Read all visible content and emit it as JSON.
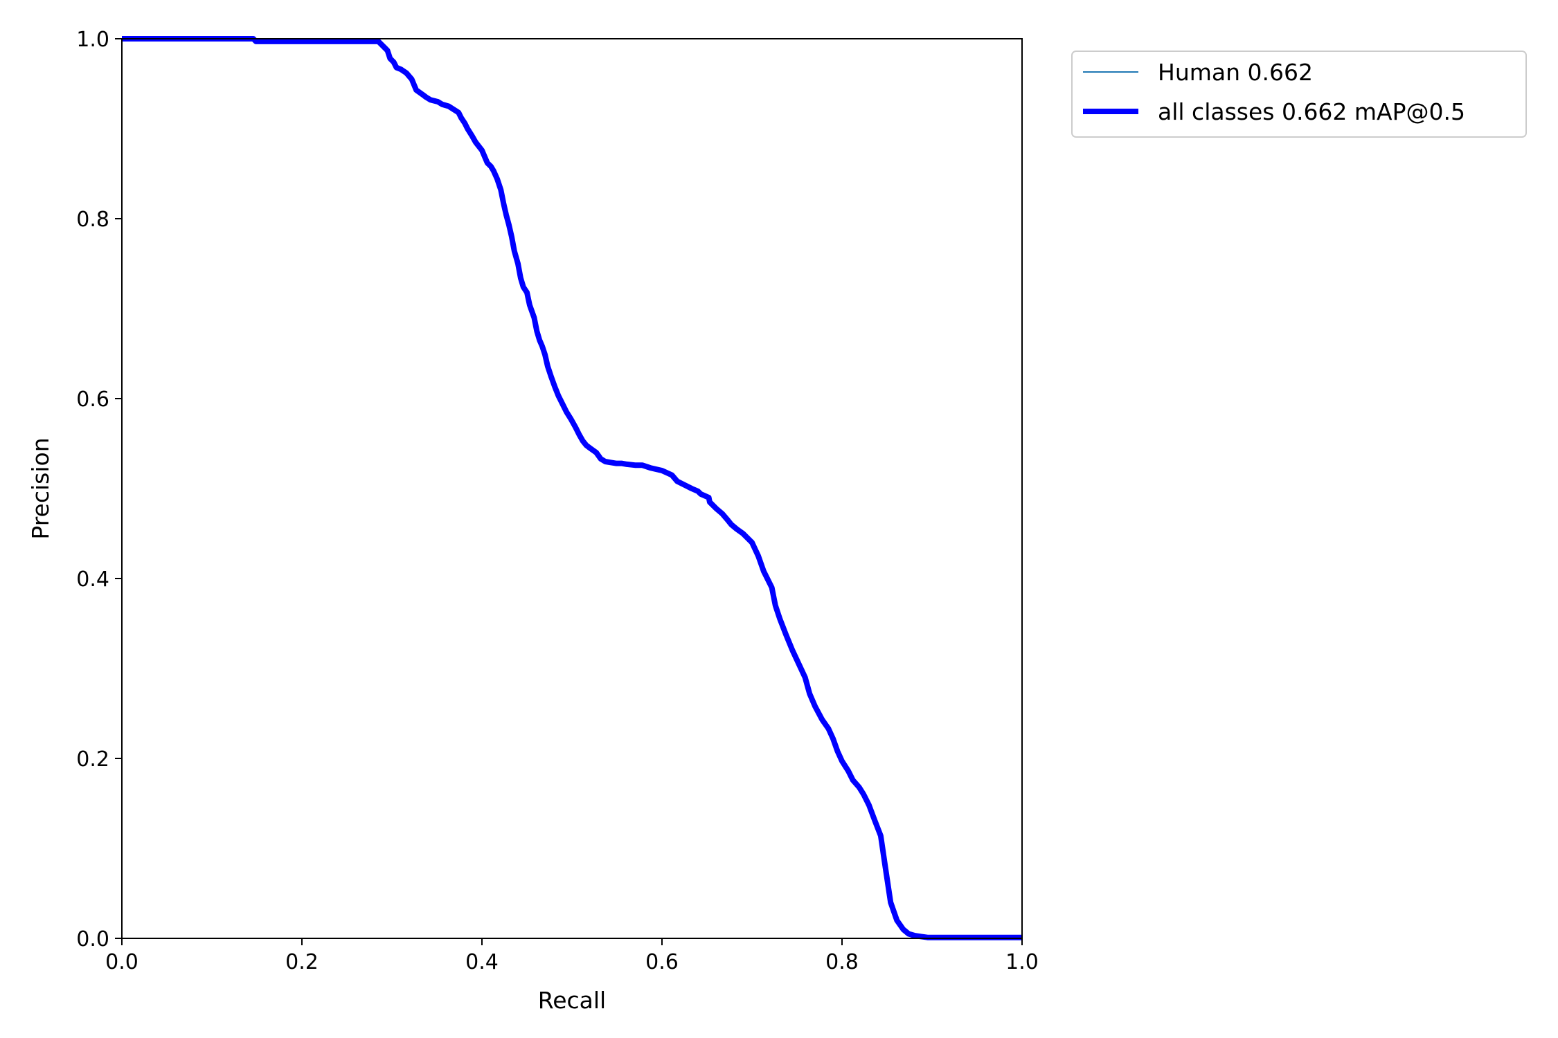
{
  "chart_data": {
    "type": "line",
    "xlabel": "Recall",
    "ylabel": "Precision",
    "xlim": [
      0.0,
      1.0
    ],
    "ylim": [
      0.0,
      1.0
    ],
    "xticks": [
      "0.0",
      "0.2",
      "0.4",
      "0.6",
      "0.8",
      "1.0"
    ],
    "yticks": [
      "0.0",
      "0.2",
      "0.4",
      "0.6",
      "0.8",
      "1.0"
    ],
    "grid": false,
    "legend_position": "outside upper right",
    "series": [
      {
        "name": "Human 0.662",
        "color": "#1f77b4",
        "linewidth": "thin",
        "x": [],
        "y": []
      },
      {
        "name": "all classes 0.662 mAP@0.5",
        "color": "#0000ff",
        "linewidth": "thick",
        "x": [
          0.0,
          0.146,
          0.149,
          0.285,
          0.288,
          0.292,
          0.295,
          0.298,
          0.302,
          0.305,
          0.31,
          0.316,
          0.322,
          0.327,
          0.334,
          0.338,
          0.343,
          0.351,
          0.356,
          0.363,
          0.374,
          0.377,
          0.381,
          0.384,
          0.389,
          0.393,
          0.4,
          0.406,
          0.41,
          0.413,
          0.417,
          0.421,
          0.424,
          0.427,
          0.43,
          0.433,
          0.436,
          0.44,
          0.443,
          0.446,
          0.45,
          0.453,
          0.458,
          0.461,
          0.464,
          0.467,
          0.47,
          0.473,
          0.477,
          0.481,
          0.485,
          0.49,
          0.494,
          0.499,
          0.504,
          0.508,
          0.512,
          0.516,
          0.52,
          0.527,
          0.532,
          0.537,
          0.543,
          0.549,
          0.555,
          0.561,
          0.57,
          0.578,
          0.587,
          0.6,
          0.611,
          0.617,
          0.627,
          0.633,
          0.64,
          0.643,
          0.652,
          0.653,
          0.66,
          0.667,
          0.673,
          0.677,
          0.683,
          0.69,
          0.7,
          0.707,
          0.713,
          0.722,
          0.726,
          0.731,
          0.738,
          0.745,
          0.752,
          0.759,
          0.764,
          0.77,
          0.778,
          0.785,
          0.79,
          0.795,
          0.8,
          0.807,
          0.812,
          0.819,
          0.824,
          0.83,
          0.836,
          0.843,
          0.848,
          0.854,
          0.861,
          0.868,
          0.874,
          0.881,
          0.888,
          0.895,
          0.901,
          0.907,
          0.913,
          0.919,
          0.924,
          0.929,
          0.932,
          0.934,
          0.938,
          0.941,
          0.944,
          0.946,
          0.948,
          1.0
        ],
        "y": [
          1.0,
          1.0,
          0.997,
          0.997,
          0.994,
          0.99,
          0.987,
          0.978,
          0.974,
          0.968,
          0.966,
          0.962,
          0.955,
          0.943,
          0.938,
          0.935,
          0.932,
          0.93,
          0.927,
          0.925,
          0.918,
          0.912,
          0.906,
          0.9,
          0.892,
          0.885,
          0.876,
          0.862,
          0.858,
          0.853,
          0.844,
          0.832,
          0.817,
          0.804,
          0.793,
          0.78,
          0.764,
          0.75,
          0.734,
          0.724,
          0.718,
          0.704,
          0.69,
          0.675,
          0.665,
          0.658,
          0.649,
          0.636,
          0.624,
          0.613,
          0.603,
          0.593,
          0.585,
          0.577,
          0.568,
          0.56,
          0.553,
          0.548,
          0.545,
          0.54,
          0.533,
          0.53,
          0.529,
          0.528,
          0.528,
          0.527,
          0.526,
          0.526,
          0.523,
          0.52,
          0.515,
          0.508,
          0.503,
          0.5,
          0.497,
          0.494,
          0.49,
          0.485,
          0.478,
          0.472,
          0.465,
          0.46,
          0.455,
          0.45,
          0.44,
          0.425,
          0.408,
          0.39,
          0.37,
          0.355,
          0.337,
          0.32,
          0.305,
          0.29,
          0.272,
          0.258,
          0.243,
          0.233,
          0.222,
          0.208,
          0.197,
          0.186,
          0.176,
          0.168,
          0.16,
          0.148,
          0.132,
          0.114,
          0.08,
          0.04,
          0.02,
          0.01,
          0.005,
          0.003,
          0.002,
          0.001,
          0.001,
          0.001,
          0.001,
          0.001,
          0.001,
          0.001,
          0.001,
          0.001,
          0.001,
          0.001,
          0.001,
          0.001,
          0.001,
          0.001
        ]
      }
    ]
  }
}
